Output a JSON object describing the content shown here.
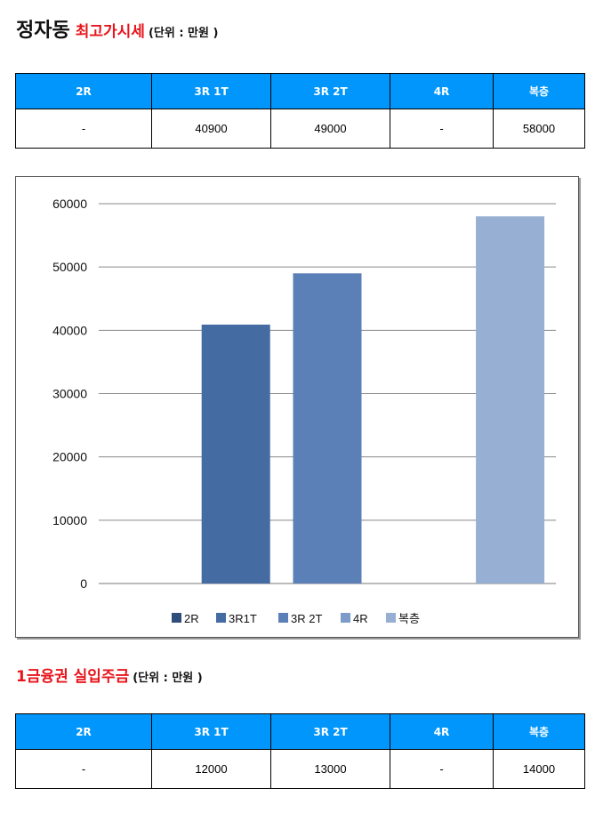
{
  "section1": {
    "title_main": "정자동",
    "title_red": "최고가시세",
    "title_unit": "(단위 : 만원 )",
    "columns": [
      "2R",
      "3R 1T",
      "3R 2T",
      "4R",
      "복층"
    ],
    "values": [
      "-",
      "40900",
      "49000",
      "-",
      "58000"
    ]
  },
  "section2": {
    "title_red": "1금융권 실입주금",
    "title_unit": "(단위 : 만원 )",
    "columns": [
      "2R",
      "3R 1T",
      "3R 2T",
      "4R",
      "복층"
    ],
    "values": [
      "-",
      "12000",
      "13000",
      "-",
      "14000"
    ]
  },
  "chart_data": {
    "type": "bar",
    "categories": [
      "2R",
      "3R1T",
      "3R 2T",
      "4R",
      "복층"
    ],
    "values": [
      0,
      40900,
      49000,
      0,
      58000
    ],
    "colors": [
      "#2e4d7b",
      "#446ba2",
      "#5b80b8",
      "#7d9bc9",
      "#97afd3"
    ],
    "ylim": [
      0,
      60000
    ],
    "yticks": [
      0,
      10000,
      20000,
      30000,
      40000,
      50000,
      60000
    ],
    "ytick_labels": [
      "0",
      "10000",
      "20000",
      "30000",
      "40000",
      "50000",
      "60000"
    ],
    "grid": true,
    "legend": "bottom",
    "legend_entries": [
      "2R",
      "3R1T",
      "3R 2T",
      "4R",
      "복층"
    ]
  }
}
